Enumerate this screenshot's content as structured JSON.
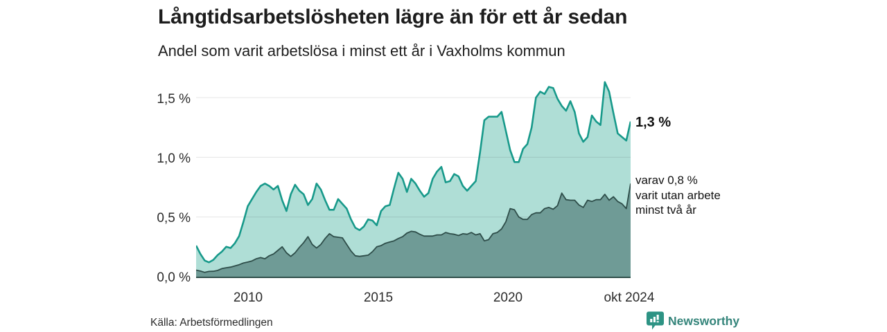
{
  "header": {
    "title": "Långtidsarbetslösheten lägre än för ett år sedan",
    "subtitle": "Andel som varit arbetslösa i minst ett år i Vaxholms kommun"
  },
  "chart_data": {
    "type": "area",
    "title": "Långtidsarbetslösheten lägre än för ett år sedan",
    "subtitle": "Andel som varit arbetslösa i minst ett år i Vaxholms kommun",
    "unit": "%",
    "x_axis": {
      "tick_labels": [
        "2010",
        "2015",
        "2020",
        "okt 2024"
      ],
      "range": "jan 2008 – okt 2024",
      "gridlines": false
    },
    "y_axis": {
      "tick_labels": [
        "0,0 %",
        "0,5 %",
        "1,0 %",
        "1,5 %"
      ],
      "tick_values": [
        0,
        0.5,
        1.0,
        1.5
      ],
      "min": 0,
      "max": 1.69,
      "gridlines": true
    },
    "legend_position": "annotations-right",
    "series": [
      {
        "name": "Andel som varit arbetslösa i minst ett år",
        "line_color": "#17998a",
        "fill_color": "#afded6",
        "last_value_label": "1,3 %",
        "values": [
          0.26,
          0.19,
          0.135,
          0.12,
          0.14,
          0.18,
          0.21,
          0.25,
          0.24,
          0.28,
          0.34,
          0.46,
          0.59,
          0.65,
          0.71,
          0.76,
          0.78,
          0.76,
          0.73,
          0.76,
          0.64,
          0.55,
          0.69,
          0.77,
          0.72,
          0.69,
          0.6,
          0.65,
          0.78,
          0.73,
          0.64,
          0.56,
          0.56,
          0.65,
          0.61,
          0.57,
          0.48,
          0.41,
          0.39,
          0.42,
          0.48,
          0.47,
          0.43,
          0.55,
          0.59,
          0.6,
          0.74,
          0.87,
          0.82,
          0.71,
          0.82,
          0.78,
          0.72,
          0.67,
          0.7,
          0.82,
          0.88,
          0.92,
          0.79,
          0.8,
          0.86,
          0.84,
          0.76,
          0.72,
          0.76,
          0.8,
          1.04,
          1.31,
          1.34,
          1.34,
          1.34,
          1.38,
          1.22,
          1.06,
          0.96,
          0.96,
          1.07,
          1.11,
          1.25,
          1.5,
          1.55,
          1.53,
          1.59,
          1.58,
          1.49,
          1.43,
          1.39,
          1.47,
          1.38,
          1.2,
          1.13,
          1.17,
          1.35,
          1.3,
          1.27,
          1.63,
          1.55,
          1.37,
          1.2,
          1.17,
          1.14,
          1.3
        ]
      },
      {
        "name": "varav utan arbete minst två år",
        "line_color": "#2e4d49",
        "fill_color": "#6f9b96",
        "last_value_label": "0,8 %",
        "values": [
          0.055,
          0.047,
          0.036,
          0.044,
          0.045,
          0.052,
          0.068,
          0.075,
          0.08,
          0.09,
          0.1,
          0.115,
          0.122,
          0.132,
          0.15,
          0.16,
          0.15,
          0.175,
          0.19,
          0.22,
          0.25,
          0.2,
          0.17,
          0.2,
          0.245,
          0.285,
          0.335,
          0.27,
          0.24,
          0.27,
          0.32,
          0.36,
          0.335,
          0.33,
          0.325,
          0.27,
          0.215,
          0.175,
          0.17,
          0.175,
          0.18,
          0.21,
          0.25,
          0.26,
          0.28,
          0.29,
          0.3,
          0.32,
          0.335,
          0.365,
          0.38,
          0.375,
          0.355,
          0.34,
          0.34,
          0.34,
          0.35,
          0.35,
          0.37,
          0.36,
          0.355,
          0.345,
          0.36,
          0.355,
          0.37,
          0.35,
          0.36,
          0.3,
          0.31,
          0.36,
          0.37,
          0.4,
          0.46,
          0.57,
          0.56,
          0.5,
          0.48,
          0.48,
          0.52,
          0.535,
          0.535,
          0.57,
          0.58,
          0.565,
          0.595,
          0.7,
          0.645,
          0.64,
          0.64,
          0.6,
          0.58,
          0.64,
          0.63,
          0.645,
          0.645,
          0.69,
          0.64,
          0.67,
          0.63,
          0.61,
          0.57,
          0.78
        ]
      }
    ],
    "annotations": [
      {
        "text": "1,3 %",
        "series": 0
      },
      {
        "lines": [
          "varav 0,8 %",
          "varit utan arbete",
          "minst två år"
        ],
        "series": 1
      }
    ]
  },
  "footer": {
    "source": "Källa: Arbetsförmedlingen",
    "brand": "Newsworthy"
  },
  "colors": {
    "total_line": "#17998a",
    "total_fill": "#afded6",
    "subset_line": "#2e4d49",
    "subset_fill": "#6f9b96",
    "gridline": "rgba(0,0,0,0.10)",
    "axis_line": "#2e4d49",
    "brand_teal": "#2d9384"
  }
}
